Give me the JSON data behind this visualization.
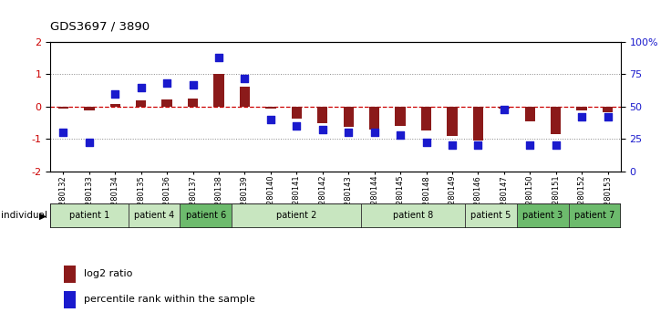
{
  "title": "GDS3697 / 3890",
  "samples": [
    "GSM280132",
    "GSM280133",
    "GSM280134",
    "GSM280135",
    "GSM280136",
    "GSM280137",
    "GSM280138",
    "GSM280139",
    "GSM280140",
    "GSM280141",
    "GSM280142",
    "GSM280143",
    "GSM280144",
    "GSM280145",
    "GSM280148",
    "GSM280149",
    "GSM280146",
    "GSM280147",
    "GSM280150",
    "GSM280151",
    "GSM280152",
    "GSM280153"
  ],
  "log2_ratio": [
    -0.05,
    -0.12,
    0.08,
    0.18,
    0.22,
    0.25,
    1.02,
    0.62,
    -0.05,
    -0.38,
    -0.5,
    -0.62,
    -0.72,
    -0.6,
    -0.75,
    -0.9,
    -1.05,
    -0.05,
    -0.45,
    -0.85,
    -0.12,
    -0.18
  ],
  "percentile": [
    30,
    22,
    60,
    65,
    68,
    67,
    88,
    72,
    40,
    35,
    32,
    30,
    30,
    28,
    22,
    20,
    20,
    48,
    20,
    20,
    42,
    42
  ],
  "patients": [
    {
      "label": "patient 1",
      "start": 0,
      "end": 3,
      "color": "#c8e6c0"
    },
    {
      "label": "patient 4",
      "start": 3,
      "end": 5,
      "color": "#c8e6c0"
    },
    {
      "label": "patient 6",
      "start": 5,
      "end": 7,
      "color": "#6dbb6d"
    },
    {
      "label": "patient 2",
      "start": 7,
      "end": 12,
      "color": "#c8e6c0"
    },
    {
      "label": "patient 8",
      "start": 12,
      "end": 16,
      "color": "#c8e6c0"
    },
    {
      "label": "patient 5",
      "start": 16,
      "end": 18,
      "color": "#c8e6c0"
    },
    {
      "label": "patient 3",
      "start": 18,
      "end": 20,
      "color": "#6dbb6d"
    },
    {
      "label": "patient 7",
      "start": 20,
      "end": 22,
      "color": "#6dbb6d"
    }
  ],
  "bar_color": "#8B1a1a",
  "dot_color": "#1a1acd",
  "zero_line_color": "#cc0000",
  "bg_color": "#ffffff",
  "ylim_left": [
    -2,
    2
  ],
  "ylim_right": [
    0,
    100
  ],
  "right_ticks": [
    0,
    25,
    50,
    75,
    100
  ],
  "right_tick_labels": [
    "0",
    "25",
    "50",
    "75",
    "100%"
  ],
  "left_ticks": [
    -2,
    -1,
    0,
    1,
    2
  ],
  "left_tick_labels": [
    "-2",
    "-1",
    "0",
    "1",
    "2"
  ],
  "legend_items": [
    {
      "color": "#8B1a1a",
      "label": "log2 ratio"
    },
    {
      "color": "#1a1acd",
      "label": "percentile rank within the sample"
    }
  ]
}
